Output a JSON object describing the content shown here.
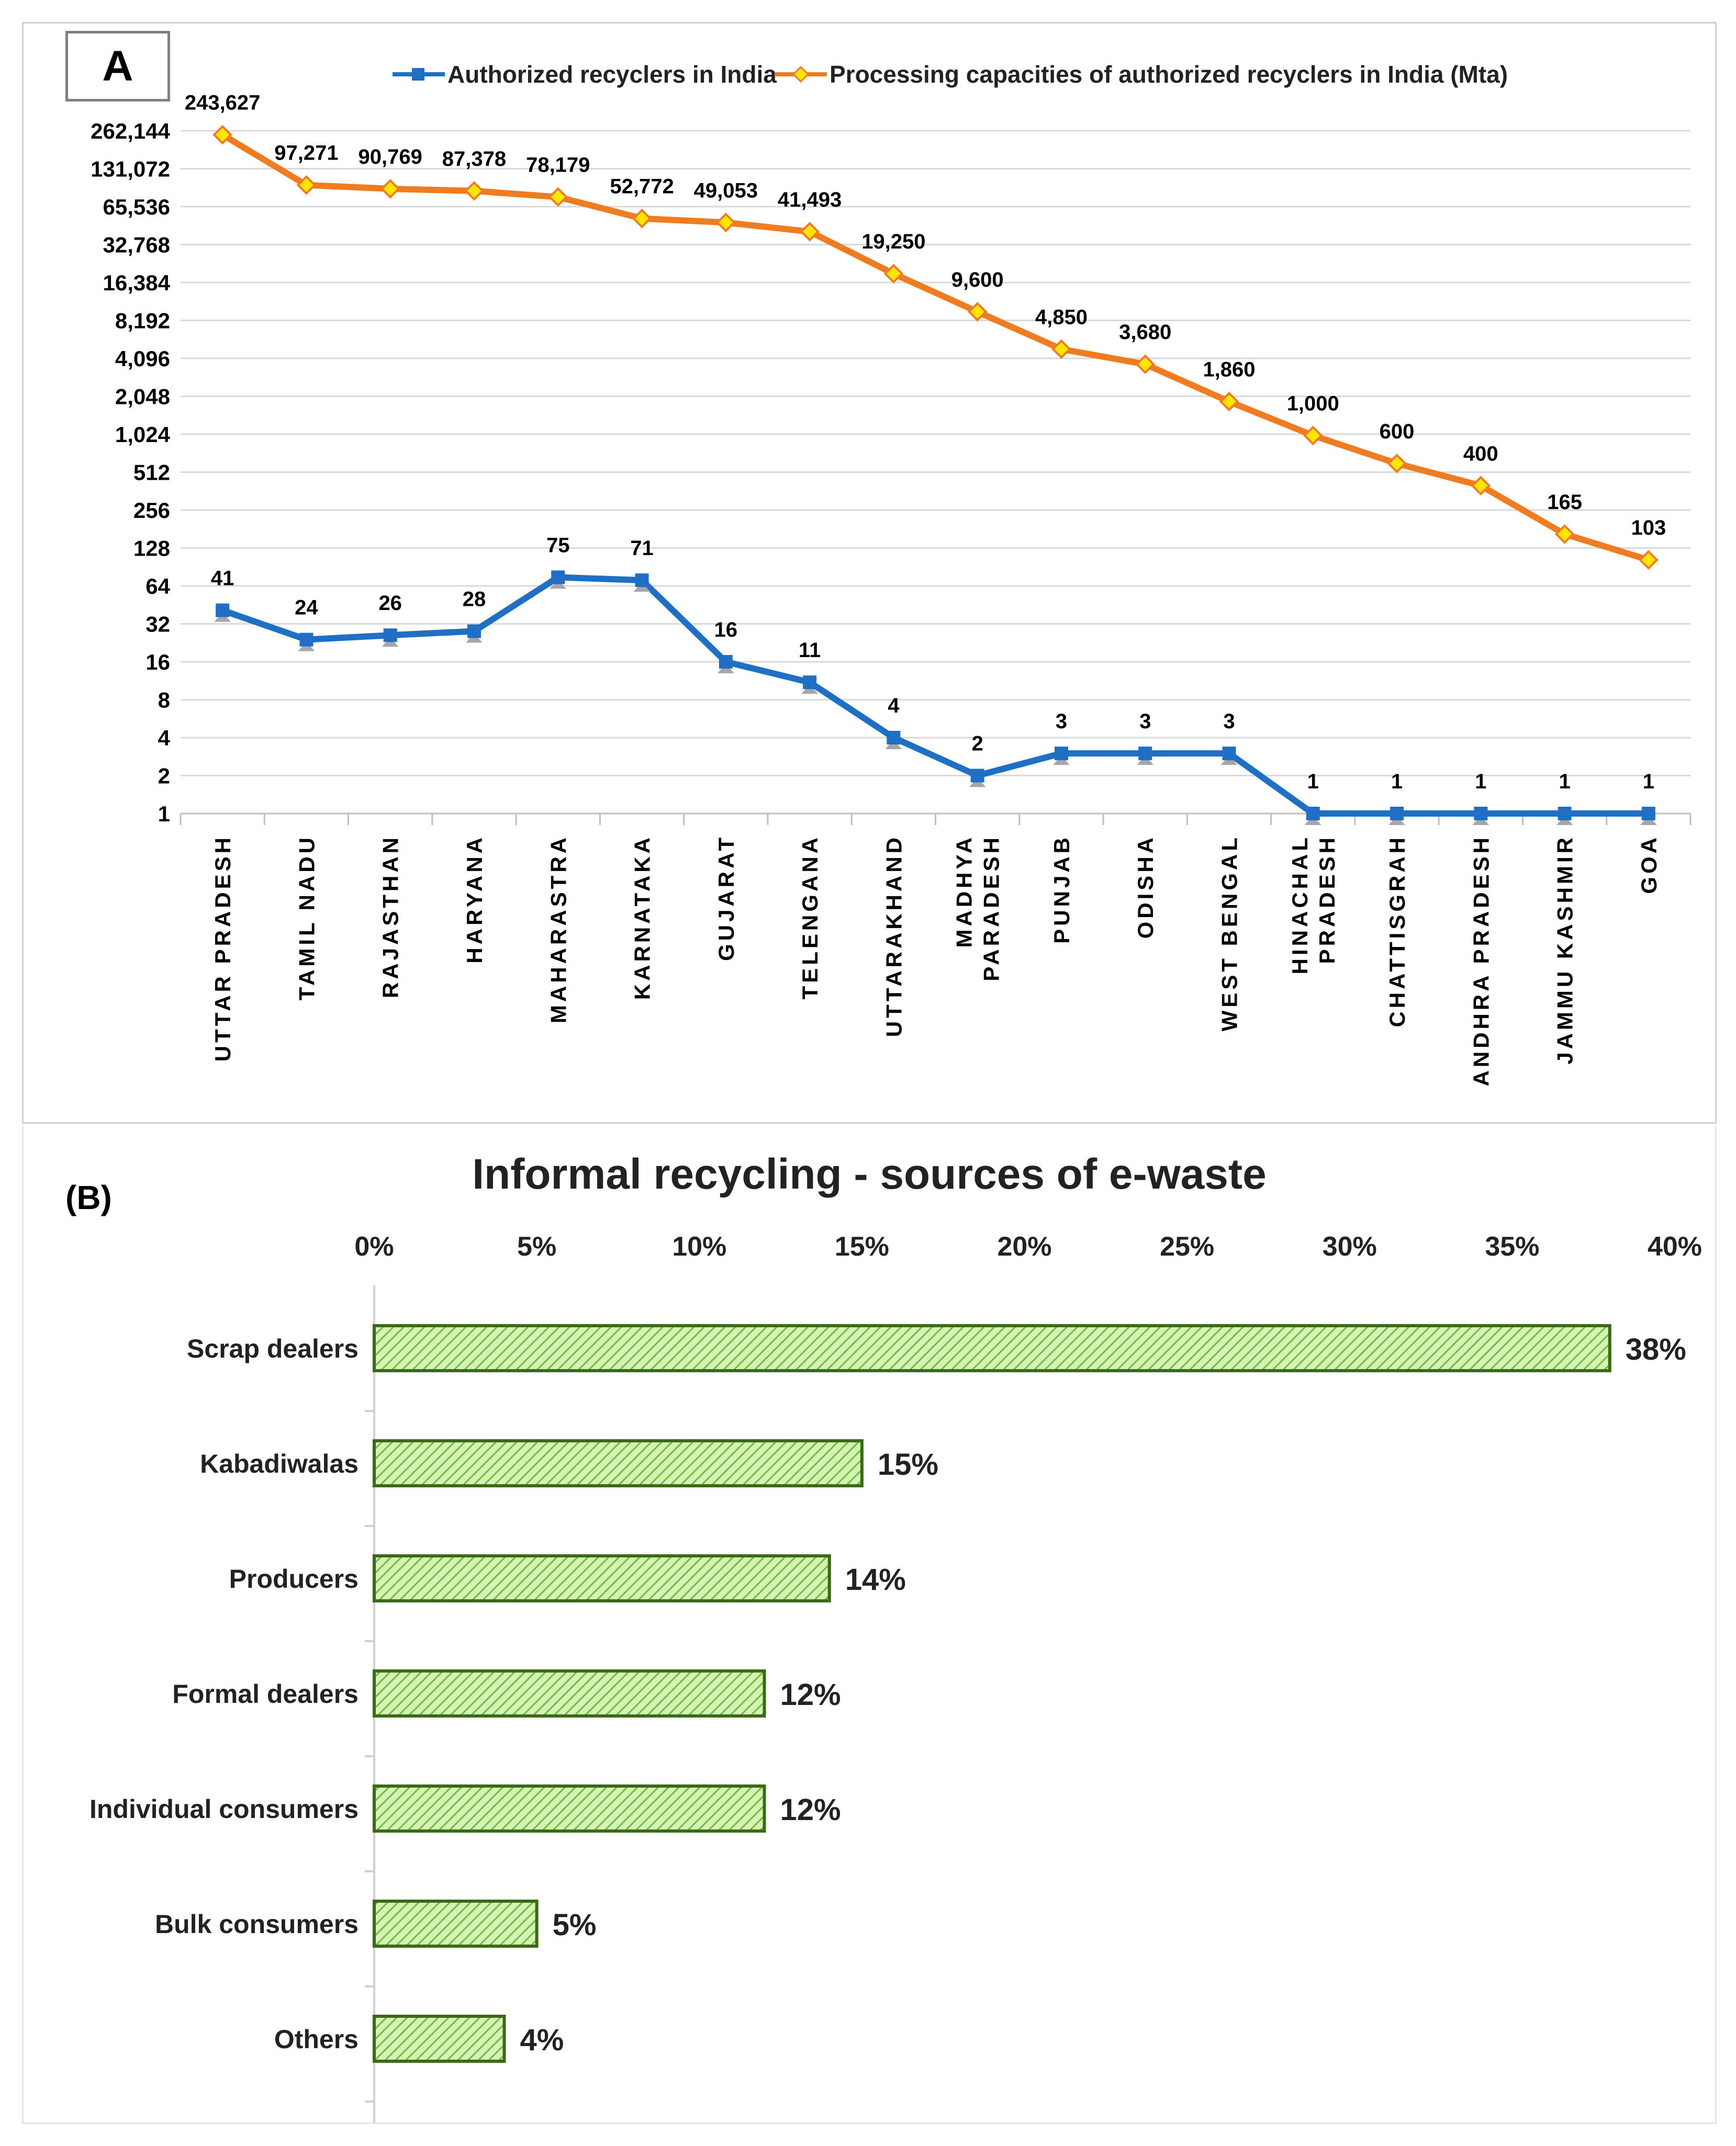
{
  "chart_data": [
    {
      "type": "line",
      "panel_label": "A",
      "y_scale": "log2",
      "y_ticks": [
        "1",
        "2",
        "4",
        "8",
        "16",
        "32",
        "64",
        "128",
        "256",
        "512",
        "1,024",
        "2,048",
        "4,096",
        "8,192",
        "16,384",
        "32,768",
        "65,536",
        "131,072",
        "262,144"
      ],
      "ylim": [
        1,
        262144
      ],
      "categories": [
        "UTTAR PRADESH",
        "TAMIL NADU",
        "RAJASTHAN",
        "HARYANA",
        "MAHARASTRA",
        "KARNATAKA",
        "GUJARAT",
        "TELENGANA",
        "UTTARAKHAND",
        "MADHYA PARADESH",
        "PUNJAB",
        "ODISHA",
        "WEST BENGAL",
        "HINACHAL PRADESH",
        "CHATTISGRAH",
        "ANDHRA PRADESH",
        "JAMMU KASHMIR",
        "GOA"
      ],
      "series": [
        {
          "name": "Authorized recyclers in India",
          "color": "#1f6fc4",
          "marker": "square",
          "values": [
            41,
            24,
            26,
            28,
            75,
            71,
            16,
            11,
            4,
            2,
            3,
            3,
            3,
            1,
            1,
            1,
            1,
            1
          ],
          "labels": [
            "41",
            "24",
            "26",
            "28",
            "75",
            "71",
            "16",
            "11",
            "4",
            "2",
            "3",
            "3",
            "3",
            "1",
            "1",
            "1",
            "1",
            "1"
          ]
        },
        {
          "name": "Processing capacities of authorized recyclers in India (Mta)",
          "color": "#f07c21",
          "marker": "diamond",
          "values": [
            243627,
            97271,
            90769,
            87378,
            78179,
            52772,
            49053,
            41493,
            19250,
            9600,
            4850,
            3680,
            1860,
            1000,
            600,
            400,
            165,
            103
          ],
          "labels": [
            "243,627",
            "97,271",
            "90,769",
            "87,378",
            "78,179",
            "52,772",
            "49,053",
            "41,493",
            "19,250",
            "9,600",
            "4,850",
            "3,680",
            "1,860",
            "1,000",
            "600",
            "400",
            "165",
            "103"
          ]
        }
      ]
    },
    {
      "type": "bar",
      "orientation": "horizontal",
      "panel_label": "(B)",
      "title": "Informal recycling - sources of e-waste",
      "x_ticks": [
        "0%",
        "5%",
        "10%",
        "15%",
        "20%",
        "25%",
        "30%",
        "35%",
        "40%"
      ],
      "xlim": [
        0,
        40
      ],
      "categories": [
        "Scrap dealers",
        "Kabadiwalas",
        "Producers",
        "Formal dealers",
        "Individual consumers",
        "Bulk consumers",
        "Others"
      ],
      "values": [
        38,
        15,
        14,
        12,
        12,
        5,
        4
      ],
      "labels": [
        "38%",
        "15%",
        "14%",
        "12%",
        "12%",
        "5%",
        "4%"
      ],
      "bar_fill": "#b7e58a",
      "bar_stroke": "#3a6a18"
    }
  ]
}
